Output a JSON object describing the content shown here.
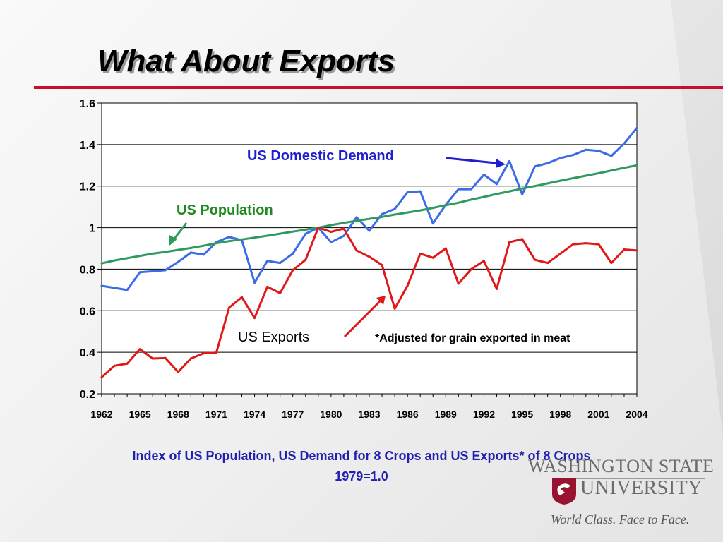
{
  "slide": {
    "title": "What About Exports",
    "caption_line1": "Index of US Population, US Demand for 8 Crops and US Exports* of 8 Crops",
    "caption_line2": "1979=1.0"
  },
  "logo": {
    "name": "WASHINGTON STATE",
    "university": "UNIVERSITY",
    "tagline": "World Class. Face to Face."
  },
  "colors": {
    "title_rule": "#c8102e",
    "caption": "#1f1fb0",
    "domestic": "#3b6be6",
    "population": "#2e9a5e",
    "exports": "#e01818",
    "label_blue": "#1f1fd0",
    "label_green": "#1f8a1f"
  },
  "chart_data": {
    "type": "line",
    "ylim": [
      0.2,
      1.6
    ],
    "yticks": [
      "0.2",
      "0.4",
      "0.6",
      "0.8",
      "1",
      "1.2",
      "1.4",
      "1.6"
    ],
    "xlim": [
      1962,
      2004
    ],
    "xtick_labels": [
      "1962",
      "1965",
      "1968",
      "1971",
      "1974",
      "1977",
      "1980",
      "1983",
      "1986",
      "1989",
      "1992",
      "1995",
      "1998",
      "2001",
      "2004"
    ],
    "grid": "horizontal",
    "annotations": [
      {
        "id": "domestic",
        "text": "US Domestic Demand",
        "color": "#1f1fd0"
      },
      {
        "id": "population",
        "text": "US Population",
        "color": "#1f8a1f"
      },
      {
        "id": "exports",
        "text": "US Exports",
        "color": "#000000"
      },
      {
        "id": "note",
        "text": "*Adjusted for grain exported in meat",
        "color": "#000000"
      }
    ],
    "x": [
      1962,
      1963,
      1964,
      1965,
      1966,
      1967,
      1968,
      1969,
      1970,
      1971,
      1972,
      1973,
      1974,
      1975,
      1976,
      1977,
      1978,
      1979,
      1980,
      1981,
      1982,
      1983,
      1984,
      1985,
      1986,
      1987,
      1988,
      1989,
      1990,
      1991,
      1992,
      1993,
      1994,
      1995,
      1996,
      1997,
      1998,
      1999,
      2000,
      2001,
      2002,
      2003,
      2004
    ],
    "series": [
      {
        "id": "domestic",
        "color": "#3b6be6",
        "values": [
          0.72,
          0.71,
          0.7,
          0.785,
          0.79,
          0.795,
          0.835,
          0.88,
          0.87,
          0.93,
          0.955,
          0.94,
          0.735,
          0.84,
          0.83,
          0.875,
          0.97,
          1.0,
          0.93,
          0.96,
          1.05,
          0.985,
          1.065,
          1.09,
          1.17,
          1.175,
          1.02,
          1.11,
          1.185,
          1.185,
          1.255,
          1.21,
          1.32,
          1.16,
          1.295,
          1.31,
          1.335,
          1.35,
          1.375,
          1.37,
          1.345,
          1.405,
          1.48
        ]
      },
      {
        "id": "population",
        "color": "#2e9a5e",
        "values": [
          0.828,
          0.842,
          0.853,
          0.864,
          0.875,
          0.883,
          0.893,
          0.902,
          0.913,
          0.925,
          0.935,
          0.943,
          0.952,
          0.961,
          0.971,
          0.981,
          0.99,
          1.0,
          1.012,
          1.023,
          1.033,
          1.042,
          1.052,
          1.063,
          1.073,
          1.083,
          1.095,
          1.108,
          1.12,
          1.135,
          1.148,
          1.162,
          1.175,
          1.188,
          1.2,
          1.213,
          1.226,
          1.238,
          1.25,
          1.262,
          1.275,
          1.288,
          1.3
        ]
      },
      {
        "id": "exports",
        "color": "#e01818",
        "values": [
          0.28,
          0.335,
          0.345,
          0.415,
          0.37,
          0.372,
          0.305,
          0.37,
          0.395,
          0.398,
          0.615,
          0.665,
          0.565,
          0.715,
          0.685,
          0.795,
          0.845,
          1.0,
          0.98,
          0.995,
          0.89,
          0.86,
          0.82,
          0.61,
          0.72,
          0.875,
          0.855,
          0.9,
          0.73,
          0.8,
          0.84,
          0.705,
          0.93,
          0.945,
          0.845,
          0.83,
          0.875,
          0.92,
          0.925,
          0.92,
          0.83,
          0.895,
          0.89
        ]
      }
    ]
  }
}
